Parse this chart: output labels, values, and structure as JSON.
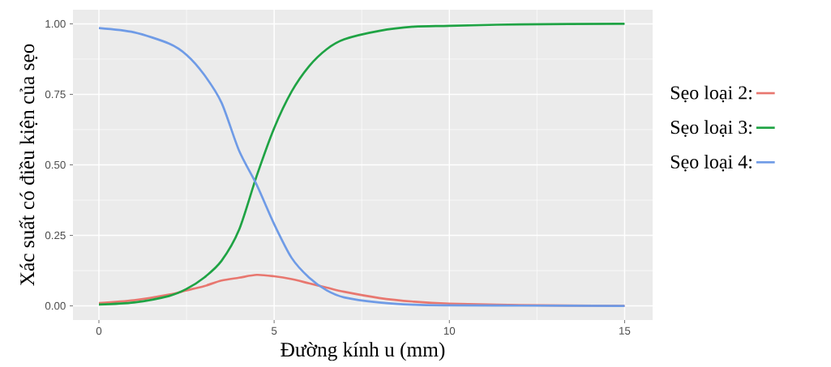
{
  "chart_data": {
    "type": "line",
    "xlabel": "Đường kính u (mm)",
    "ylabel": "Xác suất có điều kiện của sẹo",
    "x": [
      0,
      1,
      2,
      2.5,
      3,
      3.5,
      4,
      4.5,
      5,
      5.5,
      6,
      6.5,
      7,
      8,
      9,
      10,
      12,
      15
    ],
    "series": [
      {
        "name": "Sẹo loại 2:",
        "color": "#e8776f",
        "values": [
          0.01,
          0.02,
          0.04,
          0.055,
          0.07,
          0.09,
          0.1,
          0.11,
          0.105,
          0.095,
          0.08,
          0.065,
          0.05,
          0.028,
          0.015,
          0.008,
          0.003,
          0.0
        ]
      },
      {
        "name": "Sẹo loại 3:",
        "color": "#1fa344",
        "values": [
          0.005,
          0.012,
          0.035,
          0.06,
          0.1,
          0.16,
          0.27,
          0.46,
          0.63,
          0.76,
          0.85,
          0.91,
          0.945,
          0.975,
          0.99,
          0.993,
          0.998,
          1.0
        ]
      },
      {
        "name": "Sẹo loại 4:",
        "color": "#6f9be6",
        "values": [
          0.985,
          0.97,
          0.93,
          0.89,
          0.82,
          0.72,
          0.55,
          0.43,
          0.29,
          0.17,
          0.1,
          0.055,
          0.03,
          0.012,
          0.004,
          0.002,
          0.001,
          0.0
        ]
      }
    ],
    "xlim": [
      -0.74,
      15.8
    ],
    "ylim": [
      -0.05,
      1.05
    ],
    "xticks": [
      0,
      5,
      10,
      15
    ],
    "yticks": [
      {
        "value": 0,
        "label": "0.00"
      },
      {
        "value": 0.25,
        "label": "0.25"
      },
      {
        "value": 0.5,
        "label": "0.50"
      },
      {
        "value": 0.75,
        "label": "0.75"
      },
      {
        "value": 1,
        "label": "1.00"
      }
    ],
    "grid": true,
    "legend": "right"
  }
}
